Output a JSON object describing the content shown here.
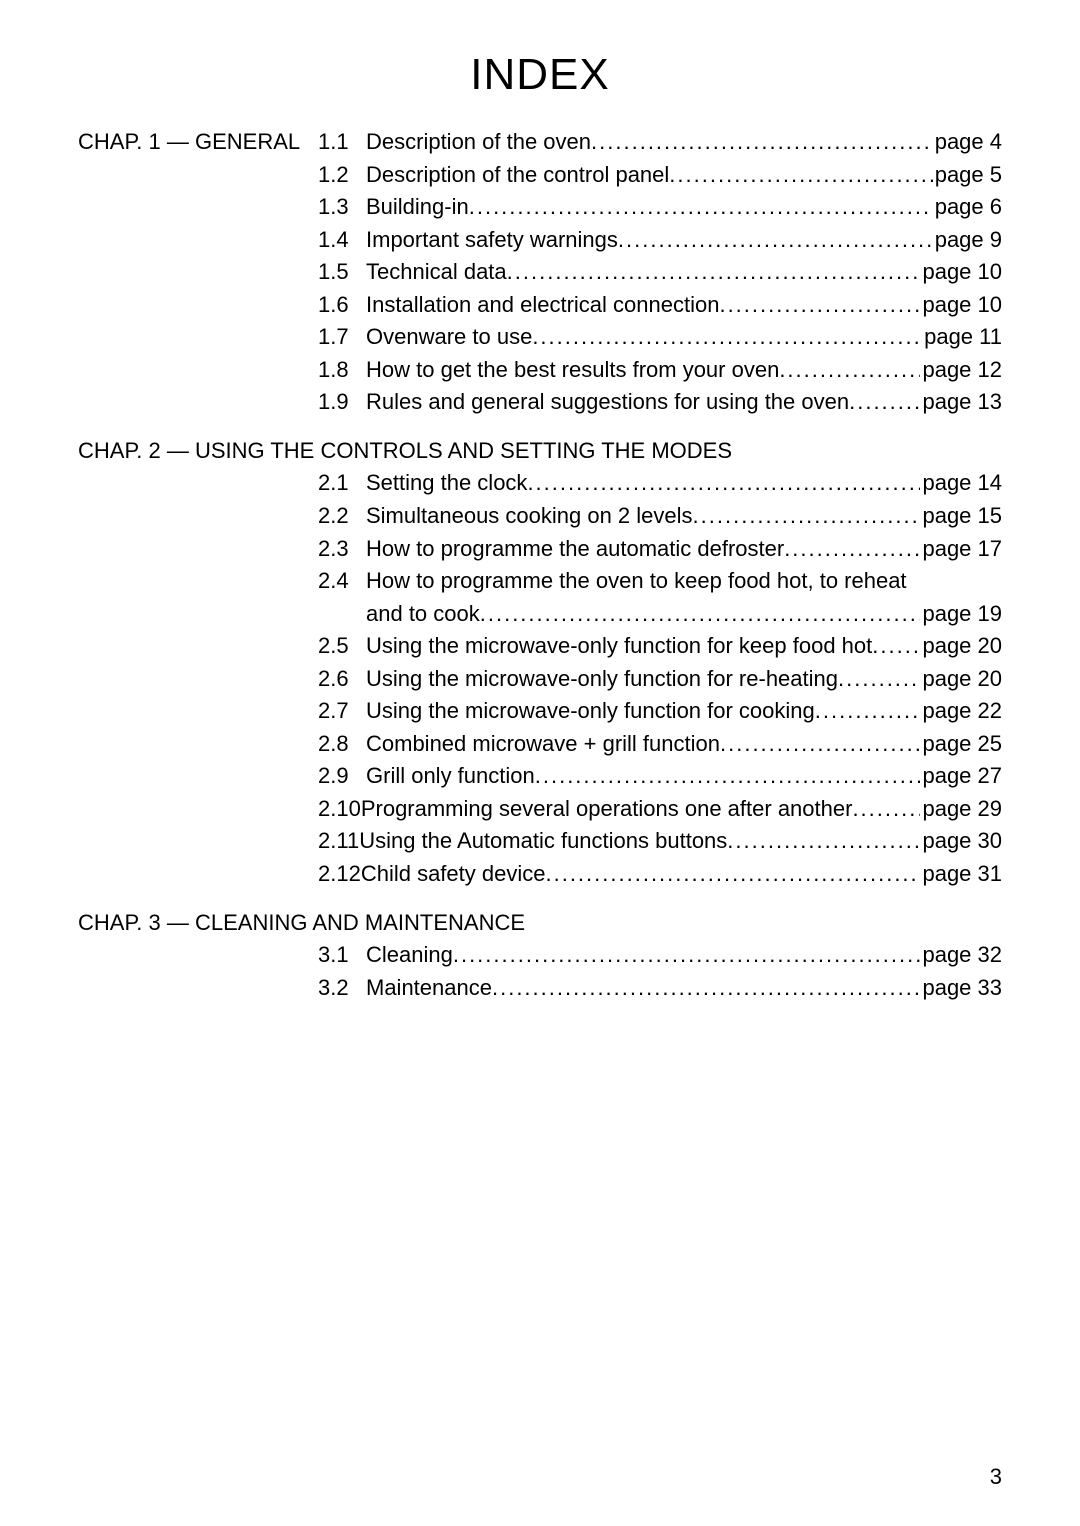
{
  "title": "INDEX",
  "pageNumber": "3",
  "dotsFill": "........................................................................................................................................................",
  "chapters": [
    {
      "label": "CHAP. 1 — GENERAL",
      "headingOnOwnLine": false,
      "entries": [
        {
          "num": "1.1",
          "desc": "Description of the oven",
          "page": "page 4"
        },
        {
          "num": "1.2",
          "desc": "Description of the control panel",
          "page": "page 5"
        },
        {
          "num": "1.3",
          "desc": "Building-in",
          "page": "page 6"
        },
        {
          "num": "1.4",
          "desc": "Important safety warnings",
          "page": "page 9"
        },
        {
          "num": "1.5",
          "desc": "Technical data",
          "page": "page 10"
        },
        {
          "num": "1.6",
          "desc": "Installation and electrical connection",
          "page": "page 10"
        },
        {
          "num": "1.7",
          "desc": "Ovenware to use",
          "page": "page 11"
        },
        {
          "num": "1.8",
          "desc": "How to get the best results from your oven",
          "page": "page 12"
        },
        {
          "num": "1.9",
          "desc": "Rules and general suggestions for using the oven",
          "page": "page 13"
        }
      ]
    },
    {
      "label": "CHAP. 2 — USING THE CONTROLS AND SETTING THE MODES",
      "headingOnOwnLine": true,
      "entries": [
        {
          "num": "2.1",
          "desc": "Setting the clock",
          "page": "page 14"
        },
        {
          "num": "2.2",
          "desc": "Simultaneous cooking on 2 levels",
          "page": "page 15"
        },
        {
          "num": "2.3",
          "desc": "How to programme the automatic defroster",
          "page": "page 17"
        },
        {
          "num": "2.4",
          "desc": "How to programme the oven to keep food hot, to reheat",
          "cont": "and to cook",
          "page": "page 19",
          "contLeadSpace": true
        },
        {
          "num": "2.5",
          "desc": "Using the microwave-only function for keep food hot",
          "page": "page 20"
        },
        {
          "num": "2.6",
          "desc": "Using the microwave-only function for re-heating",
          "page": "page 20"
        },
        {
          "num": "2.7",
          "desc": "Using the microwave-only function for cooking",
          "page": "page 22"
        },
        {
          "num": "2.8",
          "desc": "Combined microwave + grill function",
          "page": "page 25"
        },
        {
          "num": "2.9",
          "desc": "Grill only function",
          "page": "page 27"
        },
        {
          "num": "2.10",
          "desc": "Programming several operations one after another",
          "page": "page 29",
          "tightNum": true
        },
        {
          "num": "2.11",
          "desc": "Using the  Automatic functions  buttons",
          "page": "page 30",
          "tightNum": true
        },
        {
          "num": "2.12",
          "desc": "Child safety device",
          "page": "page 31",
          "tightNum": true
        }
      ]
    },
    {
      "label": "CHAP. 3 — CLEANING AND MAINTENANCE",
      "headingOnOwnLine": true,
      "entries": [
        {
          "num": "3.1",
          "desc": "Cleaning",
          "page": "page 32"
        },
        {
          "num": "3.2",
          "desc": "Maintenance",
          "page": "page 33"
        }
      ]
    }
  ]
}
